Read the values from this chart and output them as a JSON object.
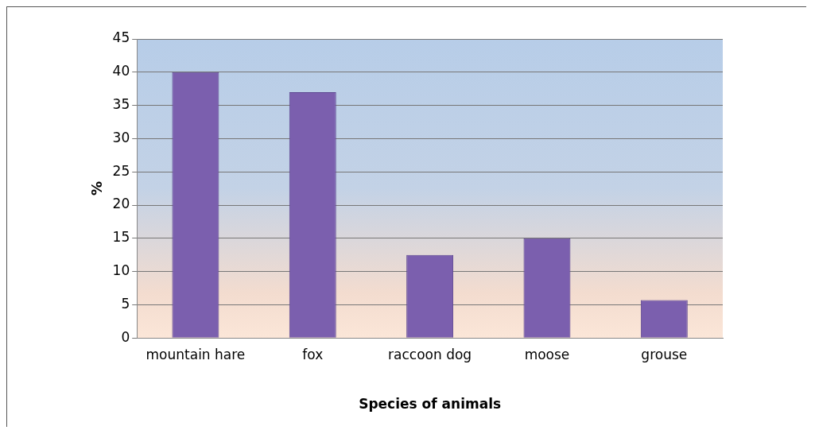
{
  "chart_data": {
    "type": "bar",
    "xlabel": "Species of animals",
    "ylabel": "%",
    "categories": [
      "mountain hare",
      "fox",
      "raccoon dog",
      "moose",
      "grouse"
    ],
    "values": [
      40,
      37,
      12.5,
      15,
      5.7
    ],
    "color": "#7b5fae",
    "ylim": [
      0,
      45
    ],
    "yticks": [
      0,
      5,
      10,
      15,
      20,
      25,
      30,
      35,
      40,
      45
    ],
    "grid": "y",
    "legend": false
  }
}
